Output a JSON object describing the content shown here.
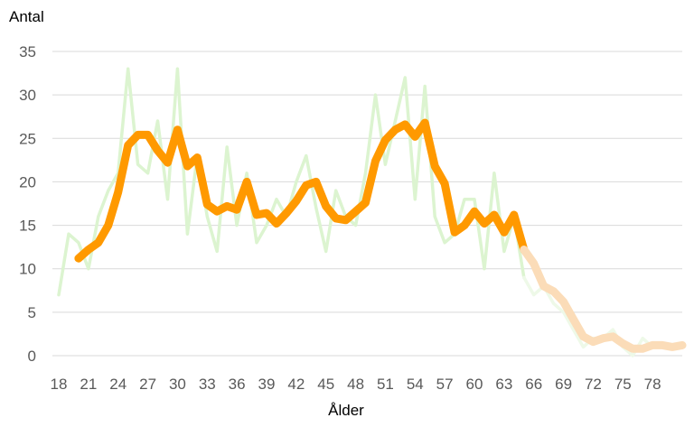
{
  "chart_data": {
    "type": "line",
    "ylabel": "Antal",
    "xlabel": "Ålder",
    "xlim": [
      18,
      81
    ],
    "ylim": [
      0,
      35
    ],
    "ytick_labels": [
      "0",
      "5",
      "10",
      "15",
      "20",
      "25",
      "30",
      "35"
    ],
    "xtick_labels": [
      "18",
      "21",
      "24",
      "27",
      "30",
      "33",
      "36",
      "39",
      "42",
      "45",
      "48",
      "51",
      "54",
      "57",
      "60",
      "63",
      "66",
      "69",
      "72",
      "75",
      "78"
    ],
    "grid": true,
    "legend": "none",
    "colors": {
      "raw": "#dcf4d0",
      "raw_faded": "#eef9e8",
      "smooth": "#ff9900",
      "smooth_faded": "#fbdcb8",
      "grid": "#d9d9d9",
      "tick_text": "#595959"
    },
    "faded_from_age": 65,
    "series": [
      {
        "x": [
          18,
          19,
          20,
          21,
          22,
          23,
          24,
          25,
          26,
          27,
          28,
          29,
          30,
          31,
          32,
          33,
          34,
          35,
          36,
          37,
          38,
          39,
          40,
          41,
          42,
          43,
          44,
          45,
          46,
          47,
          48,
          49,
          50,
          51,
          52,
          53,
          54,
          55,
          56,
          57,
          58,
          59,
          60,
          61,
          62,
          63,
          64,
          65,
          66,
          67,
          68,
          69,
          70,
          71,
          72,
          73,
          74,
          75,
          76,
          77,
          78,
          79,
          80,
          81
        ],
        "values": [
          7,
          14,
          13,
          10,
          16,
          19,
          21,
          33,
          22,
          21,
          27,
          18,
          33,
          14,
          23,
          16,
          12,
          24,
          15,
          21,
          13,
          15,
          18,
          16,
          20,
          23,
          17,
          12,
          19,
          16,
          15,
          21,
          30,
          22,
          27,
          32,
          18,
          31,
          16,
          13,
          14,
          18,
          18,
          10,
          21,
          12,
          16,
          9,
          7,
          8,
          6,
          5,
          3,
          1,
          2,
          2,
          3,
          1,
          0,
          2,
          1,
          1,
          1,
          1
        ]
      },
      {
        "x": [
          20,
          21,
          22,
          23,
          24,
          25,
          26,
          27,
          28,
          29,
          30,
          31,
          32,
          33,
          34,
          35,
          36,
          37,
          38,
          39,
          40,
          41,
          42,
          43,
          44,
          45,
          46,
          47,
          48,
          49,
          50,
          51,
          52,
          53,
          54,
          55,
          56,
          57,
          58,
          59,
          60,
          61,
          62,
          63,
          64,
          65,
          66,
          67,
          68,
          69,
          70,
          71,
          72,
          73,
          74,
          75,
          76,
          77,
          78,
          79,
          80,
          81
        ],
        "values": [
          11.2,
          12.2,
          13,
          15,
          18.8,
          24.2,
          25.4,
          25.4,
          23.6,
          22.2,
          26,
          21.8,
          22.8,
          17.4,
          16.6,
          17.2,
          16.8,
          20,
          16.2,
          16.4,
          15.2,
          16.4,
          17.8,
          19.6,
          20,
          17.2,
          15.8,
          15.6,
          16.6,
          17.6,
          22.4,
          24.8,
          26,
          26.6,
          25.2,
          26.8,
          21.8,
          19.8,
          14.2,
          15,
          16.6,
          15.2,
          16.2,
          14.2,
          16.2,
          12.2,
          10.6,
          8,
          7.4,
          6.2,
          4.2,
          2.2,
          1.6,
          2,
          2.2,
          1.4,
          0.8,
          0.8,
          1.2,
          1.2,
          1,
          1.2
        ]
      }
    ]
  }
}
